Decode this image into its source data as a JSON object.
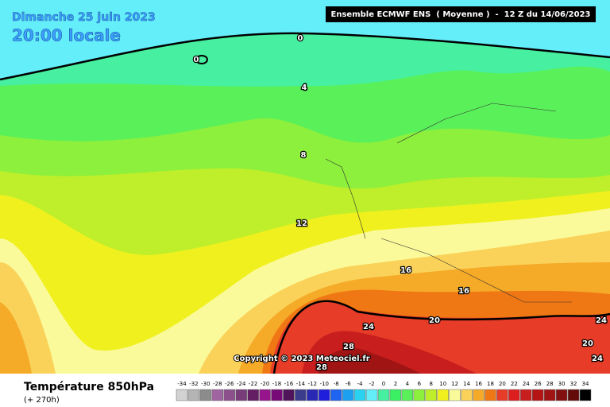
{
  "header": {
    "date": "Dimanche 25 juin 2023",
    "time": "20:00 locale",
    "model": "Ensemble ECMWF ENS  ( Moyenne )  -  12 Z du 14/06/2023"
  },
  "contour_labels": [
    "0",
    "0",
    "4",
    "8",
    "12",
    "16",
    "16",
    "20",
    "24",
    "24",
    "20",
    "24",
    "28",
    "28"
  ],
  "copyright": "Copyright © 2023 Meteociel.fr",
  "legend": {
    "title": "Température 850hPa",
    "subtitle": "(+ 270h)",
    "ticks": [
      -34,
      -32,
      -30,
      -28,
      -26,
      -24,
      -22,
      -20,
      -18,
      -16,
      -14,
      -12,
      -10,
      -8,
      -6,
      -4,
      -2,
      0,
      2,
      4,
      6,
      8,
      10,
      12,
      14,
      16,
      18,
      20,
      22,
      24,
      26,
      28,
      30,
      32,
      34
    ],
    "colors": [
      "#d2d2d2",
      "#b4b4b4",
      "#8c8c8c",
      "#a064a0",
      "#8c508c",
      "#783c78",
      "#641e64",
      "#96148c",
      "#780a78",
      "#50145a",
      "#3c3c8c",
      "#2828b4",
      "#1e1edc",
      "#1e64f0",
      "#1ea0f0",
      "#28d2f0",
      "#64eefa",
      "#46f0a0",
      "#3cf064",
      "#5af05a",
      "#8cf03c",
      "#beef2a",
      "#f0f01e",
      "#fafa9a",
      "#fad25a",
      "#f5aa28",
      "#f07814",
      "#e63c28",
      "#dc1e1e",
      "#c81e1e",
      "#b41414",
      "#a01414",
      "#821010",
      "#640a0a",
      "#000000"
    ]
  }
}
